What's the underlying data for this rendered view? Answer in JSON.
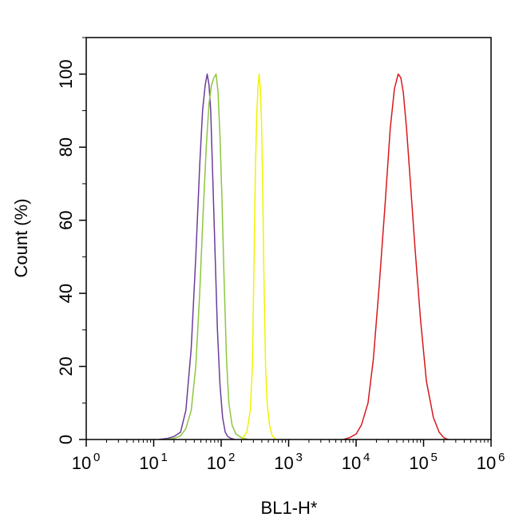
{
  "chart_data": {
    "type": "line",
    "title": "",
    "xlabel": "BL1-H*",
    "ylabel": "Count (%)",
    "x_scale": "log",
    "xlim": [
      1,
      1000000
    ],
    "ylim": [
      0,
      110
    ],
    "x_ticks": [
      {
        "base": "10",
        "exp": "0",
        "value": 1
      },
      {
        "base": "10",
        "exp": "1",
        "value": 10
      },
      {
        "base": "10",
        "exp": "2",
        "value": 100
      },
      {
        "base": "10",
        "exp": "3",
        "value": 1000
      },
      {
        "base": "10",
        "exp": "4",
        "value": 10000
      },
      {
        "base": "10",
        "exp": "5",
        "value": 100000
      },
      {
        "base": "10",
        "exp": "6",
        "value": 1000000
      }
    ],
    "y_ticks": [
      "0",
      "20",
      "40",
      "60",
      "80",
      "100"
    ],
    "y_tick_values": [
      0,
      20,
      40,
      60,
      80,
      100
    ],
    "grid": false,
    "legend": "none",
    "series": [
      {
        "color": "#6a3d9a",
        "x": [
          12,
          16,
          20,
          25,
          30,
          36,
          42,
          48,
          53,
          58,
          62,
          66,
          70,
          74,
          80,
          88,
          96,
          105,
          115,
          125,
          140,
          160
        ],
        "y": [
          0,
          0.3,
          0.8,
          2,
          8,
          25,
          50,
          75,
          90,
          97,
          100,
          97,
          90,
          75,
          55,
          30,
          15,
          6,
          2,
          0.8,
          0.3,
          0
        ]
      },
      {
        "color": "#8dc63f",
        "x": [
          15,
          20,
          25,
          30,
          36,
          42,
          48,
          54,
          60,
          66,
          72,
          78,
          84,
          90,
          96,
          103,
          110,
          120,
          130,
          145,
          165,
          200,
          250
        ],
        "y": [
          0,
          0.3,
          1,
          3,
          8,
          20,
          40,
          62,
          80,
          92,
          97,
          99,
          100,
          95,
          83,
          65,
          45,
          22,
          10,
          4,
          1.5,
          0.5,
          0
        ]
      },
      {
        "color": "#f2f200",
        "x": [
          200,
          240,
          270,
          290,
          305,
          320,
          335,
          350,
          365,
          380,
          395,
          410,
          430,
          455,
          480,
          520,
          570,
          650
        ],
        "y": [
          0,
          2,
          8,
          20,
          45,
          72,
          88,
          96,
          100,
          96,
          88,
          72,
          45,
          20,
          10,
          4,
          1,
          0
        ]
      },
      {
        "color": "#d7191c",
        "x": [
          6500,
          8000,
          10000,
          12000,
          15000,
          18000,
          22000,
          27000,
          32000,
          37000,
          42000,
          46000,
          50000,
          56000,
          64000,
          75000,
          90000,
          110000,
          140000,
          170000,
          200000,
          230000
        ],
        "y": [
          0,
          0.5,
          1.5,
          4,
          10,
          22,
          42,
          65,
          85,
          96,
          100,
          99,
          95,
          85,
          70,
          52,
          33,
          16,
          6,
          2,
          0.5,
          0
        ]
      }
    ]
  }
}
